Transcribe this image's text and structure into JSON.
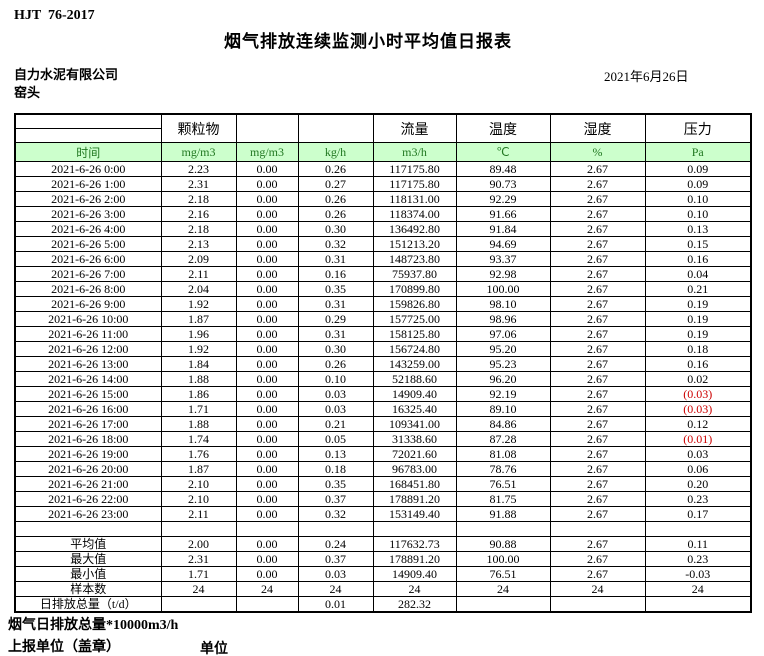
{
  "header": {
    "doc_code": "HJT  76-2017",
    "title": "烟气排放连续监测小时平均值日报表",
    "company": "自力水泥有限公司",
    "location": "窑头",
    "date": "2021年6月26日"
  },
  "table": {
    "group_headers": [
      "",
      "颗粒物",
      "",
      "",
      "流量",
      "温度",
      "湿度",
      "压力"
    ],
    "unit_row": [
      "时间",
      "mg/m3",
      "mg/m3",
      "kg/h",
      "m3/h",
      "℃",
      "%",
      "Pa"
    ],
    "rows": [
      [
        "2021-6-26 0:00",
        "2.23",
        "0.00",
        "0.26",
        "117175.80",
        "89.48",
        "2.67",
        "0.09"
      ],
      [
        "2021-6-26 1:00",
        "2.31",
        "0.00",
        "0.27",
        "117175.80",
        "90.73",
        "2.67",
        "0.09"
      ],
      [
        "2021-6-26 2:00",
        "2.18",
        "0.00",
        "0.26",
        "118131.00",
        "92.29",
        "2.67",
        "0.10"
      ],
      [
        "2021-6-26 3:00",
        "2.16",
        "0.00",
        "0.26",
        "118374.00",
        "91.66",
        "2.67",
        "0.10"
      ],
      [
        "2021-6-26 4:00",
        "2.18",
        "0.00",
        "0.30",
        "136492.80",
        "91.84",
        "2.67",
        "0.13"
      ],
      [
        "2021-6-26 5:00",
        "2.13",
        "0.00",
        "0.32",
        "151213.20",
        "94.69",
        "2.67",
        "0.15"
      ],
      [
        "2021-6-26 6:00",
        "2.09",
        "0.00",
        "0.31",
        "148723.80",
        "93.37",
        "2.67",
        "0.16"
      ],
      [
        "2021-6-26 7:00",
        "2.11",
        "0.00",
        "0.16",
        "75937.80",
        "92.98",
        "2.67",
        "0.04"
      ],
      [
        "2021-6-26 8:00",
        "2.04",
        "0.00",
        "0.35",
        "170899.80",
        "100.00",
        "2.67",
        "0.21"
      ],
      [
        "2021-6-26 9:00",
        "1.92",
        "0.00",
        "0.31",
        "159826.80",
        "98.10",
        "2.67",
        "0.19"
      ],
      [
        "2021-6-26 10:00",
        "1.87",
        "0.00",
        "0.29",
        "157725.00",
        "98.96",
        "2.67",
        "0.19"
      ],
      [
        "2021-6-26 11:00",
        "1.96",
        "0.00",
        "0.31",
        "158125.80",
        "97.06",
        "2.67",
        "0.19"
      ],
      [
        "2021-6-26 12:00",
        "1.92",
        "0.00",
        "0.30",
        "156724.80",
        "95.20",
        "2.67",
        "0.18"
      ],
      [
        "2021-6-26 13:00",
        "1.84",
        "0.00",
        "0.26",
        "143259.00",
        "95.23",
        "2.67",
        "0.16"
      ],
      [
        "2021-6-26 14:00",
        "1.88",
        "0.00",
        "0.10",
        "52188.60",
        "96.20",
        "2.67",
        "0.02"
      ],
      [
        "2021-6-26 15:00",
        "1.86",
        "0.00",
        "0.03",
        "14909.40",
        "92.19",
        "2.67",
        "(0.03)"
      ],
      [
        "2021-6-26 16:00",
        "1.71",
        "0.00",
        "0.03",
        "16325.40",
        "89.10",
        "2.67",
        "(0.03)"
      ],
      [
        "2021-6-26 17:00",
        "1.88",
        "0.00",
        "0.21",
        "109341.00",
        "84.86",
        "2.67",
        "0.12"
      ],
      [
        "2021-6-26 18:00",
        "1.74",
        "0.00",
        "0.05",
        "31338.60",
        "87.28",
        "2.67",
        "(0.01)"
      ],
      [
        "2021-6-26 19:00",
        "1.76",
        "0.00",
        "0.13",
        "72021.60",
        "81.08",
        "2.67",
        "0.03"
      ],
      [
        "2021-6-26 20:00",
        "1.87",
        "0.00",
        "0.18",
        "96783.00",
        "78.76",
        "2.67",
        "0.06"
      ],
      [
        "2021-6-26 21:00",
        "2.10",
        "0.00",
        "0.35",
        "168451.80",
        "76.51",
        "2.67",
        "0.20"
      ],
      [
        "2021-6-26 22:00",
        "2.10",
        "0.00",
        "0.37",
        "178891.20",
        "81.75",
        "2.67",
        "0.23"
      ],
      [
        "2021-6-26 23:00",
        "2.11",
        "0.00",
        "0.32",
        "153149.40",
        "91.88",
        "2.67",
        "0.17"
      ]
    ],
    "summary_rows": [
      [
        "平均值",
        "2.00",
        "0.00",
        "0.24",
        "117632.73",
        "90.88",
        "2.67",
        "0.11"
      ],
      [
        "最大值",
        "2.31",
        "0.00",
        "0.37",
        "178891.20",
        "100.00",
        "2.67",
        "0.23"
      ],
      [
        "最小值",
        "1.71",
        "0.00",
        "0.03",
        "14909.40",
        "76.51",
        "2.67",
        "-0.03"
      ],
      [
        "样本数",
        "24",
        "24",
        "24",
        "24",
        "24",
        "24",
        "24"
      ],
      [
        "日排放总量（t/d）",
        "",
        "",
        "0.01",
        "282.32",
        "",
        "",
        ""
      ]
    ]
  },
  "footer": {
    "note": "烟气日排放总量*10000m3/h",
    "report_unit_label": "上报单位（盖章）",
    "unit_label": "单位"
  },
  "colors": {
    "header_green_bg": "#ccffcc",
    "header_green_text": "#217821",
    "negative_red": "#cc0000"
  }
}
